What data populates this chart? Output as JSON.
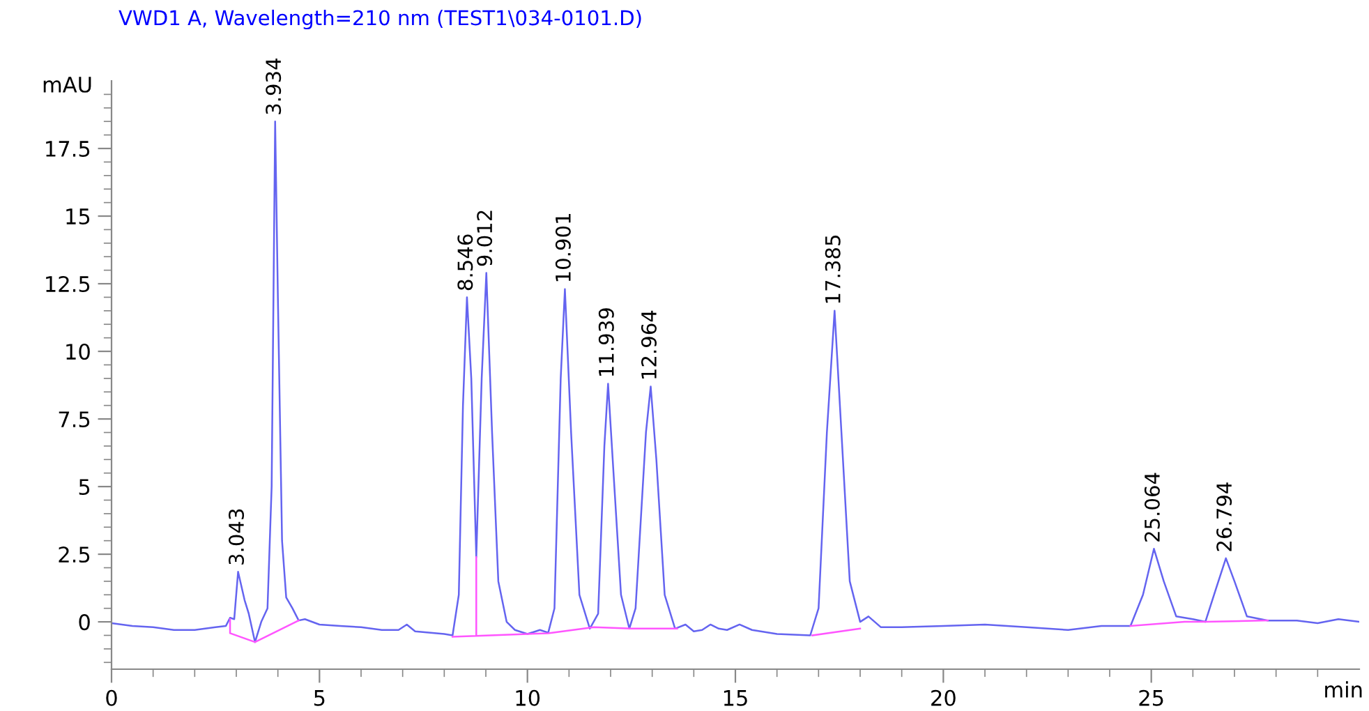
{
  "chart_data": {
    "type": "line",
    "title": "VWD1 A, Wavelength=210 nm (TEST1\\034-0101.D)",
    "ylabel": "mAU",
    "xlabel": "min",
    "xlim": [
      0,
      30
    ],
    "ylim": [
      -1.75,
      20
    ],
    "xticks": [
      0,
      {
        "value": 1,
        "label": null
      },
      {
        "value": 2,
        "label": null
      },
      {
        "value": 3,
        "label": null
      },
      {
        "value": 4,
        "label": null
      },
      5,
      {
        "value": 6,
        "label": null
      },
      {
        "value": 7,
        "label": null
      },
      {
        "value": 8,
        "label": null
      },
      {
        "value": 9,
        "label": null
      },
      10,
      {
        "value": 11,
        "label": null
      },
      {
        "value": 12,
        "label": null
      },
      {
        "value": 13,
        "label": null
      },
      {
        "value": 14,
        "label": null
      },
      15,
      {
        "value": 16,
        "label": null
      },
      {
        "value": 17,
        "label": null
      },
      {
        "value": 18,
        "label": null
      },
      {
        "value": 19,
        "label": null
      },
      20,
      {
        "value": 21,
        "label": null
      },
      {
        "value": 22,
        "label": null
      },
      {
        "value": 23,
        "label": null
      },
      {
        "value": 24,
        "label": null
      },
      25,
      {
        "value": 26,
        "label": null
      },
      {
        "value": 27,
        "label": null
      },
      {
        "value": 28,
        "label": null
      },
      {
        "value": 29,
        "label": null
      }
    ],
    "yticks": [
      {
        "value": -1.5,
        "label": null
      },
      {
        "value": -1,
        "label": null
      },
      {
        "value": -0.5,
        "label": null
      },
      0,
      {
        "value": 0.5,
        "label": null
      },
      {
        "value": 1,
        "label": null
      },
      {
        "value": 1.5,
        "label": null
      },
      {
        "value": 2,
        "label": null
      },
      2.5,
      {
        "value": 3,
        "label": null
      },
      {
        "value": 3.5,
        "label": null
      },
      {
        "value": 4,
        "label": null
      },
      {
        "value": 4.5,
        "label": null
      },
      5,
      {
        "value": 5.5,
        "label": null
      },
      {
        "value": 6,
        "label": null
      },
      {
        "value": 6.5,
        "label": null
      },
      {
        "value": 7,
        "label": null
      },
      7.5,
      {
        "value": 8,
        "label": null
      },
      {
        "value": 8.5,
        "label": null
      },
      {
        "value": 9,
        "label": null
      },
      {
        "value": 9.5,
        "label": null
      },
      10,
      {
        "value": 10.5,
        "label": null
      },
      {
        "value": 11,
        "label": null
      },
      {
        "value": 11.5,
        "label": null
      },
      {
        "value": 12,
        "label": null
      },
      12.5,
      {
        "value": 13,
        "label": null
      },
      {
        "value": 13.5,
        "label": null
      },
      {
        "value": 14,
        "label": null
      },
      {
        "value": 14.5,
        "label": null
      },
      15,
      {
        "value": 15.5,
        "label": null
      },
      {
        "value": 16,
        "label": null
      },
      {
        "value": 16.5,
        "label": null
      },
      {
        "value": 17,
        "label": null
      },
      17.5,
      {
        "value": 18,
        "label": null
      },
      {
        "value": 18.5,
        "label": null
      },
      {
        "value": 19,
        "label": null
      },
      {
        "value": 19.5,
        "label": null
      }
    ],
    "grid": false,
    "legend": false,
    "marker": "none",
    "line_style": "solid",
    "series": [
      {
        "color": "#6464f0",
        "x": [
          0,
          0.5,
          1,
          1.5,
          2,
          2.5,
          2.75,
          2.85,
          2.95,
          3.043,
          3.2,
          3.3,
          3.45,
          3.6,
          3.75,
          3.85,
          3.934,
          4.0,
          4.1,
          4.2,
          4.35,
          4.5,
          4.65,
          5.0,
          5.5,
          6.0,
          6.5,
          6.9,
          7.1,
          7.3,
          8.0,
          8.2,
          8.35,
          8.45,
          8.546,
          8.65,
          8.77,
          8.9,
          9.012,
          9.15,
          9.3,
          9.5,
          9.7,
          10.0,
          10.3,
          10.5,
          10.65,
          10.8,
          10.901,
          11.05,
          11.25,
          11.5,
          11.7,
          11.85,
          11.939,
          12.05,
          12.25,
          12.45,
          12.6,
          12.85,
          12.964,
          13.1,
          13.3,
          13.55,
          13.8,
          14.0,
          14.2,
          14.4,
          14.6,
          14.8,
          15.1,
          15.4,
          16.0,
          16.8,
          17.0,
          17.2,
          17.385,
          17.55,
          17.75,
          18.0,
          18.2,
          18.5,
          19.0,
          20.0,
          21.0,
          22.0,
          23.0,
          23.8,
          24.5,
          24.8,
          25.064,
          25.3,
          25.6,
          26.0,
          26.3,
          26.55,
          26.794,
          27.0,
          27.3,
          27.8,
          28.5,
          29.0,
          29.5,
          30.0
        ],
        "values": [
          -0.05,
          -0.15,
          -0.2,
          -0.3,
          -0.3,
          -0.2,
          -0.15,
          0.15,
          0.1,
          1.85,
          0.8,
          0.3,
          -0.75,
          0.0,
          0.5,
          5.0,
          18.5,
          12.0,
          3.0,
          0.9,
          0.5,
          0.05,
          0.1,
          -0.1,
          -0.15,
          -0.2,
          -0.3,
          -0.3,
          -0.1,
          -0.35,
          -0.45,
          -0.5,
          1.0,
          8.0,
          12.0,
          9.0,
          2.4,
          9.0,
          12.9,
          7.0,
          1.5,
          0.0,
          -0.3,
          -0.45,
          -0.3,
          -0.4,
          0.5,
          9.0,
          12.3,
          7.0,
          1.0,
          -0.25,
          0.3,
          6.5,
          8.8,
          6.0,
          1.0,
          -0.25,
          0.5,
          7.0,
          8.7,
          6.0,
          1.0,
          -0.25,
          -0.1,
          -0.35,
          -0.3,
          -0.1,
          -0.25,
          -0.3,
          -0.1,
          -0.3,
          -0.45,
          -0.5,
          0.5,
          7.0,
          11.5,
          7.0,
          1.5,
          0.0,
          0.2,
          -0.2,
          -0.2,
          -0.15,
          -0.1,
          -0.2,
          -0.3,
          -0.15,
          -0.15,
          1.0,
          2.7,
          1.5,
          0.2,
          0.1,
          0.0,
          1.2,
          2.35,
          1.5,
          0.2,
          0.05,
          0.05,
          -0.05,
          0.1,
          0.0
        ]
      },
      {
        "color": "#ff55ff",
        "x": [
          2.85,
          2.85,
          3.45,
          4.5,
          null,
          8.2,
          8.77,
          8.77,
          8.77,
          10.5,
          11.6,
          12.5,
          13.6,
          null,
          16.85,
          18.0,
          null,
          24.5,
          25.8,
          26.3,
          27.8
        ],
        "values": [
          0.1,
          -0.42,
          -0.75,
          0.05,
          null,
          -0.55,
          -0.52,
          2.4,
          -0.52,
          -0.42,
          -0.2,
          -0.25,
          -0.25,
          null,
          -0.5,
          -0.25,
          null,
          -0.15,
          0.0,
          0.0,
          0.05
        ]
      }
    ],
    "annotations": [
      {
        "text": "3.043",
        "x": 3.043,
        "y": 1.85
      },
      {
        "text": "3.934",
        "x": 3.934,
        "y": 18.5
      },
      {
        "text": "8.546",
        "x": 8.546,
        "y": 12.0
      },
      {
        "text": "9.012",
        "x": 9.012,
        "y": 12.9
      },
      {
        "text": "10.901",
        "x": 10.901,
        "y": 12.3
      },
      {
        "text": "11.939",
        "x": 11.939,
        "y": 8.8
      },
      {
        "text": "12.964",
        "x": 12.964,
        "y": 8.7
      },
      {
        "text": "17.385",
        "x": 17.385,
        "y": 11.5
      },
      {
        "text": "25.064",
        "x": 25.064,
        "y": 2.7
      },
      {
        "text": "26.794",
        "x": 26.794,
        "y": 2.35
      }
    ]
  }
}
